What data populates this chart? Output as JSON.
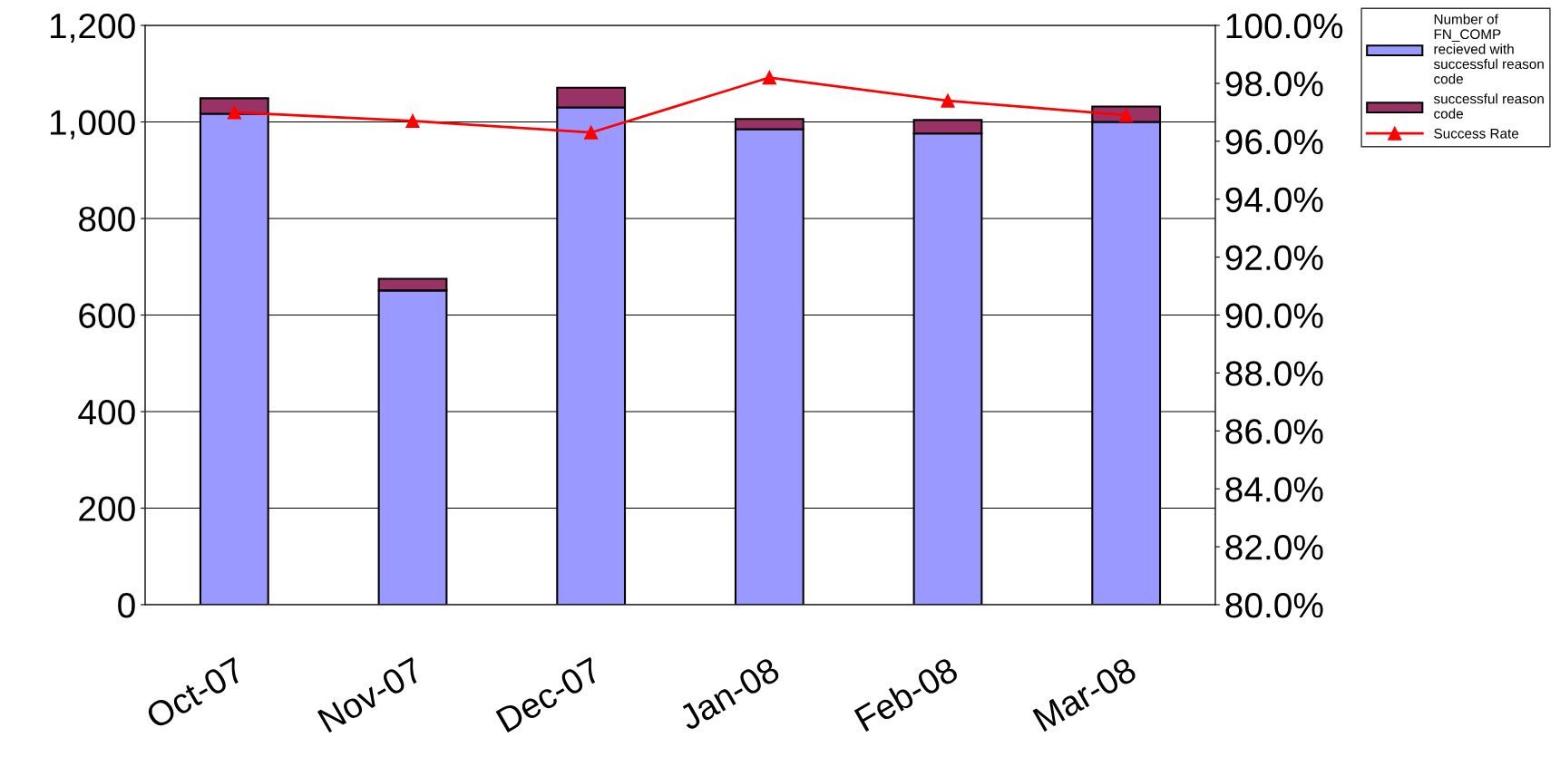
{
  "chart_data": {
    "type": "bar",
    "stacked": true,
    "categories": [
      "Oct-07",
      "Nov-07",
      "Dec-07",
      "Jan-08",
      "Feb-08",
      "Mar-08"
    ],
    "series": [
      {
        "name": "Number of\nFN_COMP\nrecieved with\nsuccessful reason\ncode",
        "color": "#9999ff",
        "values": [
          1017,
          651,
          1030,
          985,
          976,
          1000
        ]
      },
      {
        "name": "successful reason\ncode",
        "color": "#993366",
        "values": [
          32,
          24,
          41,
          21,
          28,
          32
        ]
      },
      {
        "name": "Success Rate",
        "type": "line",
        "axis": "y2",
        "color": "#ff0000",
        "marker": "triangle",
        "values": [
          97.0,
          96.7,
          96.3,
          98.2,
          97.4,
          96.9
        ]
      }
    ],
    "ylim": [
      0,
      1200
    ],
    "yticks": [
      0,
      {
        "value": 200,
        "label": "200"
      },
      {
        "value": 400,
        "label": "400"
      },
      {
        "value": 600,
        "label": "600"
      },
      {
        "value": 800,
        "label": "800"
      },
      {
        "value": 1000,
        "label": "1,000"
      },
      {
        "value": 1200,
        "label": "1,200"
      }
    ],
    "y2lim": [
      80,
      100
    ],
    "y2ticks": [
      {
        "value": 80,
        "label": "80.0%"
      },
      {
        "value": 82,
        "label": "82.0%"
      },
      {
        "value": 84,
        "label": "84.0%"
      },
      {
        "value": 86,
        "label": "86.0%"
      },
      {
        "value": 88,
        "label": "88.0%"
      },
      {
        "value": 90,
        "label": "90.0%"
      },
      {
        "value": 92,
        "label": "92.0%"
      },
      {
        "value": 94,
        "label": "94.0%"
      },
      {
        "value": 96,
        "label": "96.0%"
      },
      {
        "value": 98,
        "label": "98.0%"
      },
      {
        "value": 100,
        "label": "100.0%"
      }
    ],
    "grid": "y",
    "legend": "top right"
  }
}
